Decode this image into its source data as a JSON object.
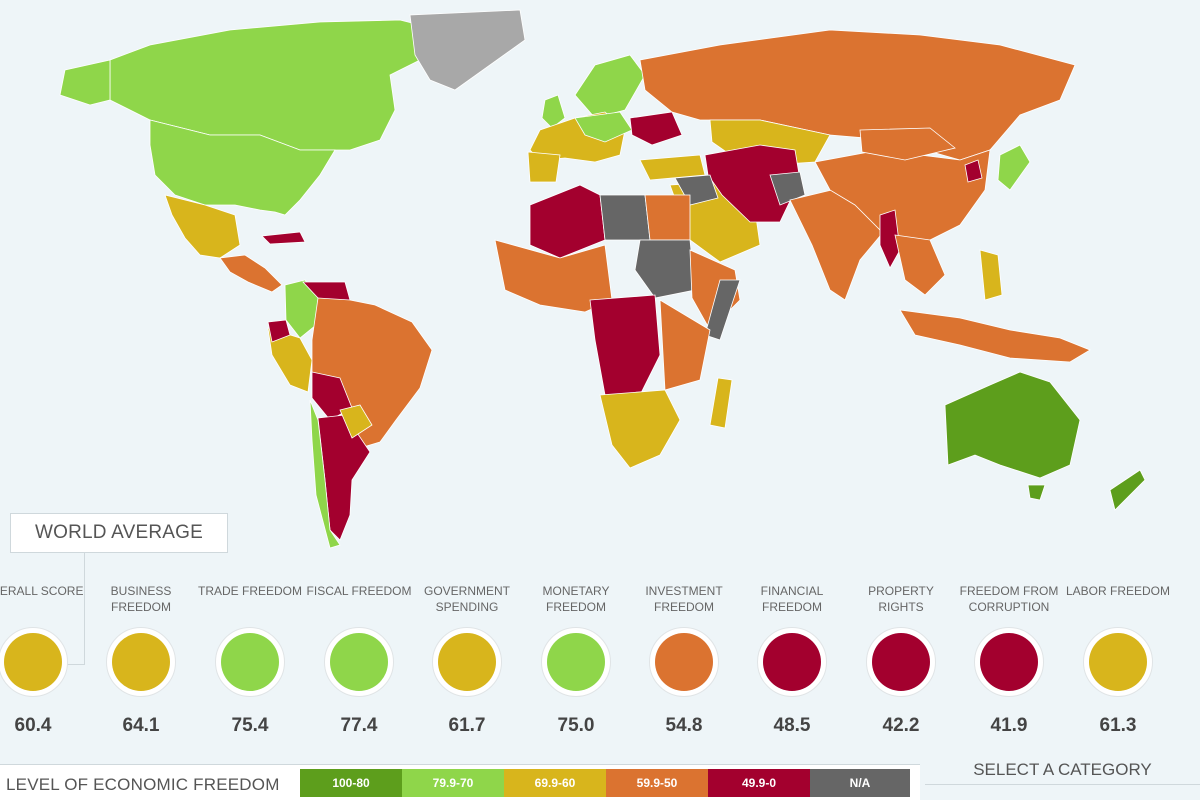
{
  "world_average": {
    "title": "WORLD AVERAGE"
  },
  "categories": [
    {
      "label": "OVERALL SCORE",
      "value": "60.4",
      "color": "#d8b51c"
    },
    {
      "label": "BUSINESS FREEDOM",
      "value": "64.1",
      "color": "#d8b51c"
    },
    {
      "label": "TRADE FREEDOM",
      "value": "75.4",
      "color": "#8fd64a"
    },
    {
      "label": "FISCAL FREEDOM",
      "value": "77.4",
      "color": "#8fd64a"
    },
    {
      "label": "GOVERNMENT SPENDING",
      "value": "61.7",
      "color": "#d8b51c"
    },
    {
      "label": "MONETARY FREEDOM",
      "value": "75.0",
      "color": "#8fd64a"
    },
    {
      "label": "INVESTMENT FREEDOM",
      "value": "54.8",
      "color": "#db7330"
    },
    {
      "label": "FINANCIAL FREEDOM",
      "value": "48.5",
      "color": "#a3002e"
    },
    {
      "label": "PROPERTY RIGHTS",
      "value": "42.2",
      "color": "#a3002e"
    },
    {
      "label": "FREEDOM FROM CORRUPTION",
      "value": "41.9",
      "color": "#a3002e"
    },
    {
      "label": "LABOR FREEDOM",
      "value": "61.3",
      "color": "#d8b51c"
    }
  ],
  "legend": {
    "title": "LEVEL OF ECONOMIC FREEDOM",
    "items": [
      {
        "label": "100-80",
        "color": "#5d9e1c"
      },
      {
        "label": "79.9-70",
        "color": "#8fd64a"
      },
      {
        "label": "69.9-60",
        "color": "#d8b51c"
      },
      {
        "label": "59.9-50",
        "color": "#db7330"
      },
      {
        "label": "49.9-0",
        "color": "#a3002e"
      },
      {
        "label": "N/A",
        "color": "#666666"
      }
    ]
  },
  "select_category": {
    "label": "SELECT A CATEGORY"
  },
  "map_colors": {
    "mostly_free": "#8fd64a",
    "free": "#5d9e1c",
    "moderately_free": "#d8b51c",
    "mostly_unfree": "#db7330",
    "repressed": "#a3002e",
    "not_ranked": "#666666",
    "no_data": "#a8a8a8"
  }
}
